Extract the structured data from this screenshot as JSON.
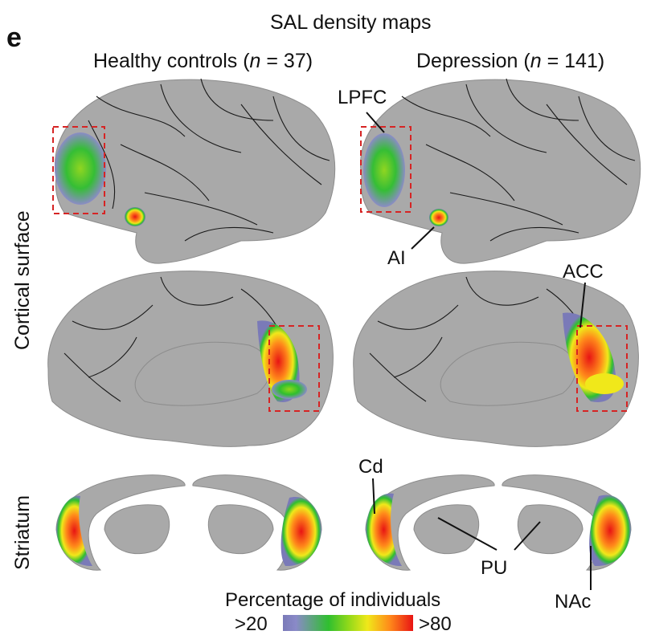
{
  "panel_letter": "e",
  "title": "SAL density maps",
  "columns": {
    "healthy": "Healthy controls (n = 37)",
    "depression": "Depression (n = 141)"
  },
  "rows": {
    "cortical": "Cortical surface",
    "striatum": "Striatum"
  },
  "annotations": {
    "lpfc": "LPFC",
    "ai": "AI",
    "acc": "ACC",
    "cd": "Cd",
    "pu": "PU",
    "nac": "NAc"
  },
  "colorbar": {
    "title": "Percentage of individuals",
    "min_label": ">20",
    "max_label": ">80"
  },
  "colors": {
    "surface": "#a9a9a9",
    "highlight_box": "#d62424",
    "scale": [
      "#7a7ab8",
      "#2fbf2f",
      "#f0e81a",
      "#ff8a1a",
      "#e81414"
    ]
  }
}
